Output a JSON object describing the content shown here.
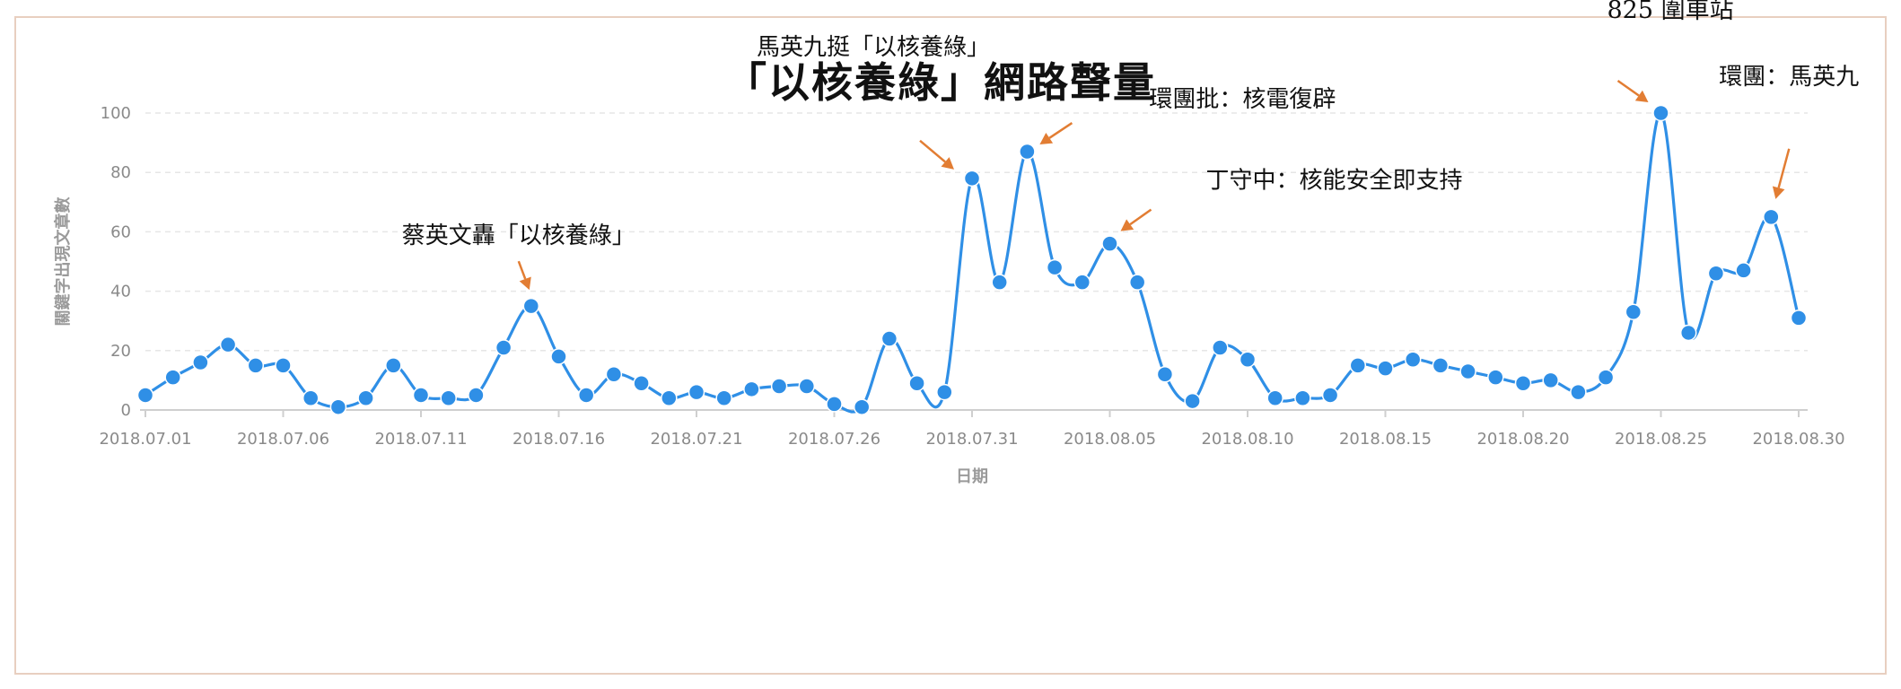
{
  "chart_data": {
    "type": "line",
    "title": "「以核養綠」網路聲量",
    "xlabel": "日期",
    "ylabel": "關鍵字出現文章數",
    "ylim": [
      0,
      100
    ],
    "yticks": [
      0,
      20,
      40,
      60,
      80,
      100
    ],
    "x": [
      "2018.07.01",
      "2018.07.02",
      "2018.07.03",
      "2018.07.04",
      "2018.07.05",
      "2018.07.06",
      "2018.07.07",
      "2018.07.08",
      "2018.07.09",
      "2018.07.10",
      "2018.07.11",
      "2018.07.12",
      "2018.07.13",
      "2018.07.14",
      "2018.07.15",
      "2018.07.16",
      "2018.07.17",
      "2018.07.18",
      "2018.07.19",
      "2018.07.20",
      "2018.07.21",
      "2018.07.22",
      "2018.07.23",
      "2018.07.24",
      "2018.07.25",
      "2018.07.26",
      "2018.07.27",
      "2018.07.28",
      "2018.07.29",
      "2018.07.30",
      "2018.07.31",
      "2018.08.01",
      "2018.08.02",
      "2018.08.03",
      "2018.08.04",
      "2018.08.05",
      "2018.08.06",
      "2018.08.07",
      "2018.08.08",
      "2018.08.09",
      "2018.08.10",
      "2018.08.11",
      "2018.08.12",
      "2018.08.13",
      "2018.08.14",
      "2018.08.15",
      "2018.08.16",
      "2018.08.17",
      "2018.08.18",
      "2018.08.19",
      "2018.08.20",
      "2018.08.21",
      "2018.08.22",
      "2018.08.23",
      "2018.08.24",
      "2018.08.25",
      "2018.08.26",
      "2018.08.27",
      "2018.08.28",
      "2018.08.29",
      "2018.08.30"
    ],
    "xtick_labels": [
      "2018.07.01",
      "2018.07.06",
      "2018.07.11",
      "2018.07.16",
      "2018.07.21",
      "2018.07.26",
      "2018.07.31",
      "2018.08.05",
      "2018.08.10",
      "2018.08.15",
      "2018.08.20",
      "2018.08.25",
      "2018.08.30"
    ],
    "series": [
      {
        "color": "#2f8fe6",
        "values": [
          5,
          11,
          16,
          22,
          15,
          15,
          4,
          1,
          4,
          15,
          5,
          4,
          5,
          21,
          35,
          18,
          5,
          12,
          9,
          4,
          6,
          4,
          7,
          8,
          8,
          2,
          1,
          24,
          9,
          6,
          78,
          43,
          87,
          48,
          43,
          56,
          43,
          12,
          3,
          21,
          17,
          4,
          4,
          5,
          15,
          14,
          17,
          15,
          13,
          11,
          9,
          10,
          6,
          11,
          33,
          100,
          26,
          46,
          47,
          65,
          31
        ]
      }
    ],
    "annotations": [
      {
        "text": "蔡英文轟「以核養綠」",
        "x": "2018.07.15",
        "y": 35
      },
      {
        "text": "馬英九挺「以核養綠」",
        "x": "2018.07.31",
        "y": 78
      },
      {
        "text": "環團批：核電復辟",
        "x": "2018.08.02",
        "y": 87
      },
      {
        "text": "丁守中：核能安全即支持",
        "x": "2018.08.05",
        "y": 56
      },
      {
        "text": "825 圍車站",
        "x": "2018.08.25",
        "y": 100
      },
      {
        "text": "環團：馬英九",
        "x": "2018.08.29",
        "y": 65
      }
    ],
    "grid": true,
    "legend": "none",
    "arrow_color": "#e27d33"
  }
}
